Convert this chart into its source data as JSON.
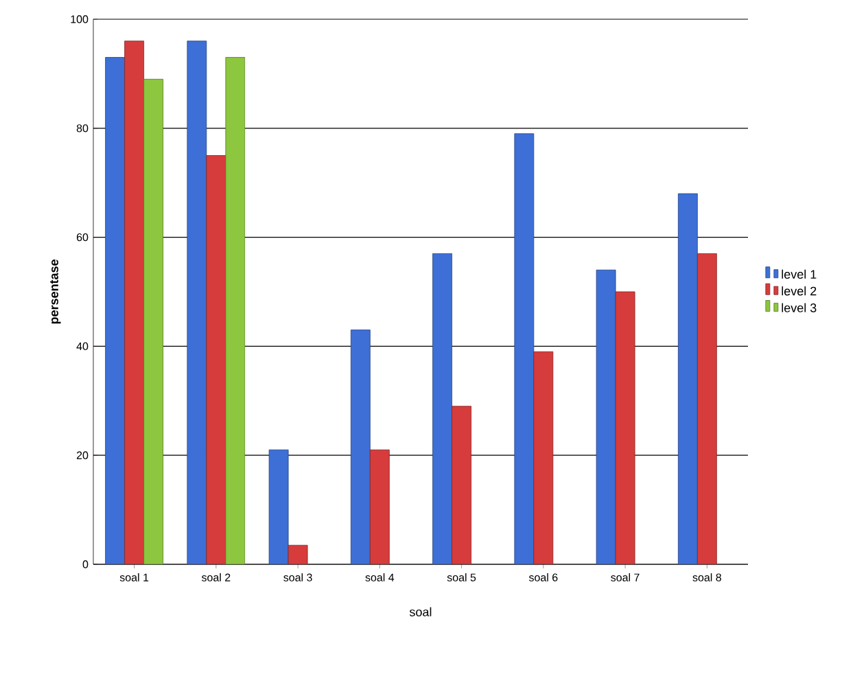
{
  "chart_data": {
    "type": "bar",
    "xlabel": "soal",
    "ylabel": "persentase",
    "categories": [
      "soal 1",
      "soal 2",
      "soal 3",
      "soal 4",
      "soal 5",
      "soal 6",
      "soal 7",
      "soal 8"
    ],
    "series": [
      {
        "name": "level 1",
        "color": "#3d6fd6",
        "values": [
          93,
          96,
          21,
          43,
          57,
          79,
          54,
          68
        ]
      },
      {
        "name": "level 2",
        "color": "#d63c3c",
        "values": [
          96,
          75,
          3.5,
          21,
          29,
          39,
          50,
          57
        ]
      },
      {
        "name": "level 3",
        "color": "#8dc63f",
        "values": [
          89,
          93,
          null,
          null,
          null,
          null,
          null,
          null
        ]
      }
    ],
    "ylim": [
      0,
      100
    ],
    "yticks": [
      0,
      20,
      40,
      60,
      80,
      100
    ],
    "grid": "y",
    "legend": "right"
  }
}
